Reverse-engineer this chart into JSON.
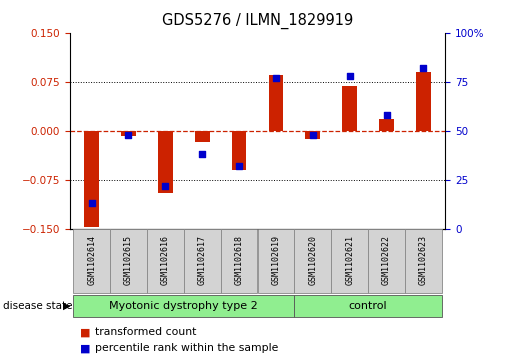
{
  "title": "GDS5276 / ILMN_1829919",
  "samples": [
    "GSM1102614",
    "GSM1102615",
    "GSM1102616",
    "GSM1102617",
    "GSM1102618",
    "GSM1102619",
    "GSM1102620",
    "GSM1102621",
    "GSM1102622",
    "GSM1102623"
  ],
  "transformed_count": [
    -0.148,
    -0.008,
    -0.095,
    -0.018,
    -0.06,
    0.085,
    -0.012,
    0.068,
    0.018,
    0.09
  ],
  "percentile_rank": [
    13,
    48,
    22,
    38,
    32,
    77,
    48,
    78,
    58,
    82
  ],
  "disease_groups": [
    {
      "label": "Myotonic dystrophy type 2",
      "start": 0,
      "end": 6,
      "color": "#90EE90"
    },
    {
      "label": "control",
      "start": 6,
      "end": 10,
      "color": "#90EE90"
    }
  ],
  "ylim_left": [
    -0.15,
    0.15
  ],
  "ylim_right": [
    0,
    100
  ],
  "yticks_left": [
    -0.15,
    -0.075,
    0,
    0.075,
    0.15
  ],
  "yticks_right": [
    0,
    25,
    50,
    75,
    100
  ],
  "bar_color": "#cc2200",
  "dot_color": "#0000cc",
  "zero_line_color": "#cc2200",
  "grid_color": "#000000",
  "background_color": "#ffffff",
  "plot_bg_color": "#ffffff",
  "label_bg_color": "#d3d3d3",
  "disease_state_label": "disease state",
  "legend_items": [
    {
      "label": "transformed count",
      "color": "#cc2200"
    },
    {
      "label": "percentile rank within the sample",
      "color": "#0000cc"
    }
  ]
}
